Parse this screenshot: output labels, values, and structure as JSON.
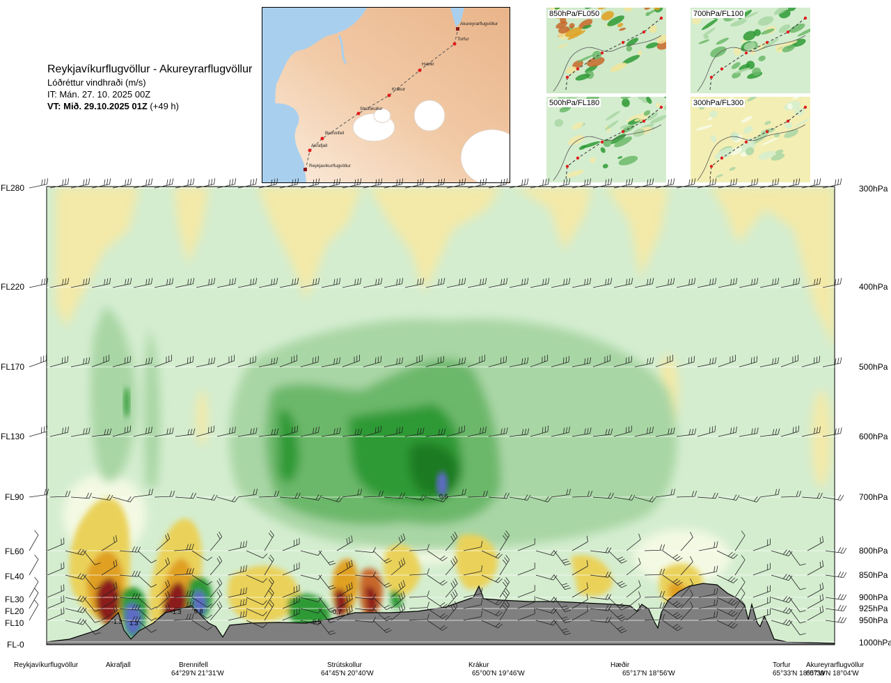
{
  "title": {
    "route": "Reykjavíkurflugvöllur - Akureyrarflugvöllur",
    "variable": "Lóðréttur vindhraði (m/s)",
    "issue_time": "IT: Mán. 27. 10. 2025 00Z",
    "valid_prefix": "VT: Mið. 29.10.2025 01Z",
    "valid_suffix": "(+49 h)"
  },
  "locator_map": {
    "waypoints": [
      "Akureyrarflugvöllur",
      "Torfur",
      "Hæðir",
      "Krákur",
      "Strútskollur",
      "Brennifell",
      "Akrafjall",
      "Reykjavíkurflugvöllur"
    ]
  },
  "mini_maps": [
    {
      "label": "850hPa/FL050"
    },
    {
      "label": "700hPa/FL100"
    },
    {
      "label": "500hPa/FL180"
    },
    {
      "label": "300hPa/FL300"
    }
  ],
  "colors": {
    "strong_down": "#8b1a1a",
    "down_orange": "#c8682a",
    "down_amber": "#e0a020",
    "down_yellow": "#ead25a",
    "weak_down": "#f3e9a8",
    "near_zero": "#f7fbe6",
    "weak_up": "#d4edcf",
    "up_light": "#a9d6a5",
    "up_mid": "#6cb86a",
    "up_strong": "#2e9a35",
    "up_max": "#1d7a24",
    "up_extreme": "#5d6cc4",
    "terrain": "#7f7f7f"
  },
  "chart_data": {
    "type": "heatmap",
    "xlabel": "",
    "ylabel": "",
    "flight_levels": [
      "FL280",
      "FL220",
      "FL170",
      "FL130",
      "FL90",
      "FL60",
      "FL40",
      "FL30",
      "FL20",
      "FL10",
      "FL-0"
    ],
    "pressure_levels": [
      "300hPa",
      "400hPa",
      "500hPa",
      "600hPa",
      "700hPa",
      "800hPa",
      "850hPa",
      "900hPa",
      "925hPa",
      "950hPa",
      "1000hPa"
    ],
    "pressure_values": [
      300,
      400,
      500,
      600,
      700,
      800,
      850,
      900,
      925,
      950,
      1000
    ],
    "ylim": [
      1000,
      300
    ],
    "stations": [
      {
        "name": "Reykjavíkurflugvöllur",
        "coord": ""
      },
      {
        "name": "Akrafjall",
        "coord": ""
      },
      {
        "name": "Brennifell",
        "coord": "64°29'N 21°31'W"
      },
      {
        "name": "Strútskollur",
        "coord": "64°45'N 20°40'W"
      },
      {
        "name": "Krákur",
        "coord": "65°00'N 19°46'W"
      },
      {
        "name": "Hæðir",
        "coord": "65°17'N 18°56'W"
      },
      {
        "name": "Torfur",
        "coord": "65°33'N 18°07'W"
      },
      {
        "name": "Akureyrarflugvöllur",
        "coord": "65°39'N 18°04'W"
      }
    ],
    "value_labels": [
      "-1.3",
      "1.3",
      "-1.3",
      "0.8",
      "0.5",
      "-0.7",
      "0.6"
    ]
  }
}
